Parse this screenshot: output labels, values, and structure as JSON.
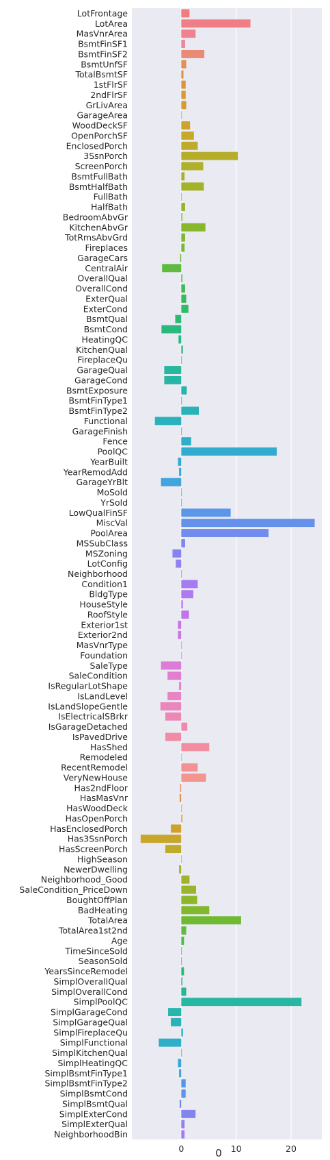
{
  "chart_data": {
    "type": "bar",
    "orientation": "horizontal",
    "title": "",
    "xlabel": "0",
    "ylabel": "",
    "xlim": [
      -9.0,
      25.6
    ],
    "xticks": [
      0,
      10,
      20
    ],
    "grid": true,
    "categories": [
      "LotFrontage",
      "LotArea",
      "MasVnrArea",
      "BsmtFinSF1",
      "BsmtFinSF2",
      "BsmtUnfSF",
      "TotalBsmtSF",
      "1stFlrSF",
      "2ndFlrSF",
      "GrLivArea",
      "GarageArea",
      "WoodDeckSF",
      "OpenPorchSF",
      "EnclosedPorch",
      "3SsnPorch",
      "ScreenPorch",
      "BsmtFullBath",
      "BsmtHalfBath",
      "FullBath",
      "HalfBath",
      "BedroomAbvGr",
      "KitchenAbvGr",
      "TotRmsAbvGrd",
      "Fireplaces",
      "GarageCars",
      "CentralAir",
      "OverallQual",
      "OverallCond",
      "ExterQual",
      "ExterCond",
      "BsmtQual",
      "BsmtCond",
      "HeatingQC",
      "KitchenQual",
      "FireplaceQu",
      "GarageQual",
      "GarageCond",
      "BsmtExposure",
      "BsmtFinType1",
      "BsmtFinType2",
      "Functional",
      "GarageFinish",
      "Fence",
      "PoolQC",
      "YearBuilt",
      "YearRemodAdd",
      "GarageYrBlt",
      "MoSold",
      "YrSold",
      "LowQualFinSF",
      "MiscVal",
      "PoolArea",
      "MSSubClass",
      "MSZoning",
      "LotConfig",
      "Neighborhood",
      "Condition1",
      "BldgType",
      "HouseStyle",
      "RoofStyle",
      "Exterior1st",
      "Exterior2nd",
      "MasVnrType",
      "Foundation",
      "SaleType",
      "SaleCondition",
      "IsRegularLotShape",
      "IsLandLevel",
      "IsLandSlopeGentle",
      "IsElectricalSBrkr",
      "IsGarageDetached",
      "IsPavedDrive",
      "HasShed",
      "Remodeled",
      "RecentRemodel",
      "VeryNewHouse",
      "Has2ndFloor",
      "HasMasVnr",
      "HasWoodDeck",
      "HasOpenPorch",
      "HasEnclosedPorch",
      "Has3SsnPorch",
      "HasScreenPorch",
      "HighSeason",
      "NewerDwelling",
      "Neighborhood_Good",
      "SaleCondition_PriceDown",
      "BoughtOffPlan",
      "BadHeating",
      "TotalArea",
      "TotalArea1st2nd",
      "Age",
      "TimeSinceSold",
      "SeasonSold",
      "YearsSinceRemodel",
      "SimplOverallQual",
      "SimplOverallCond",
      "SimplPoolQC",
      "SimplGarageCond",
      "SimplGarageQual",
      "SimplFireplaceQu",
      "SimplFunctional",
      "SimplKitchenQual",
      "SimplHeatingQC",
      "SimplBsmtFinType1",
      "SimplBsmtFinType2",
      "SimplBsmtCond",
      "SimplBsmtQual",
      "SimplExterCond",
      "SimplExterQual",
      "NeighborhoodBin"
    ],
    "values": [
      1.5,
      12.6,
      2.6,
      0.7,
      4.2,
      0.9,
      0.4,
      0.8,
      0.8,
      0.9,
      0.1,
      1.6,
      2.3,
      3.0,
      10.3,
      4.0,
      0.6,
      4.1,
      0.1,
      0.7,
      0.2,
      4.4,
      0.7,
      0.6,
      -0.2,
      -3.5,
      0.2,
      0.7,
      0.9,
      1.3,
      -1.1,
      -3.6,
      -0.5,
      0.3,
      0.1,
      -3.1,
      -3.1,
      1.0,
      0.1,
      3.2,
      -4.8,
      0.1,
      1.8,
      17.4,
      -0.6,
      -0.4,
      -3.7,
      0.1,
      0.1,
      9.0,
      24.3,
      15.9,
      0.7,
      -1.6,
      -1.0,
      0.1,
      3.0,
      2.2,
      0.3,
      1.4,
      -0.6,
      -0.6,
      0.1,
      0.1,
      -3.7,
      -2.5,
      -0.4,
      -2.5,
      -3.8,
      -2.9,
      1.1,
      -2.9,
      5.1,
      0.1,
      3.0,
      4.5,
      -0.2,
      -0.3,
      0.1,
      0.2,
      -1.9,
      -7.4,
      -2.9,
      0.1,
      -0.4,
      1.5,
      2.7,
      2.9,
      5.1,
      10.9,
      0.9,
      0.5,
      0.1,
      0.1,
      0.5,
      0.2,
      0.9,
      21.9,
      -2.4,
      -1.9,
      0.3,
      -4.1,
      0.1,
      -0.6,
      -0.4,
      0.8,
      0.8,
      -0.3,
      2.6,
      0.6,
      0.6
    ],
    "colors": [
      "#f17c7e",
      "#f07e87",
      "#ee8291",
      "#ec869d",
      "#e78b76",
      "#e48f56",
      "#e19245",
      "#dd953d",
      "#d89a36",
      "#d69c32",
      "#d39f2f",
      "#cca42b",
      "#c6a82b",
      "#bfab2b",
      "#b6ad2b",
      "#b0b02b",
      "#a8b12b",
      "#a2b32b",
      "#9bb42b",
      "#93b52b",
      "#8eb72b",
      "#87b82c",
      "#7fb92d",
      "#77ba30",
      "#6bbb37",
      "#5fbb3f",
      "#52bb48",
      "#44bb52",
      "#39ba5d",
      "#31ba68",
      "#2cba73",
      "#29b97c",
      "#28b985",
      "#27b88d",
      "#27b895",
      "#27b79c",
      "#27b6a3",
      "#27b5aa",
      "#28b4b0",
      "#29b3b6",
      "#2ab2bc",
      "#2cb0c2",
      "#2eaec8",
      "#31acce",
      "#35aad3",
      "#3aa7d8",
      "#41a4dd",
      "#489fe1",
      "#519be5",
      "#5b96e8",
      "#6691eb",
      "#718ced",
      "#7c87ef",
      "#8783f0",
      "#9280f1",
      "#9c7df1",
      "#a67bf0",
      "#af79ef",
      "#b777ed",
      "#bf76ea",
      "#c676e7",
      "#cc77e3",
      "#d278df",
      "#d879db",
      "#dd7bd6",
      "#e17ed0",
      "#e581ca",
      "#e884c4",
      "#eb86bd",
      "#ed88b6",
      "#ef8aaf",
      "#f08ca8",
      "#f18ea1",
      "#f2909a",
      "#f39294",
      "#f3948e",
      "#e88e66",
      "#e0924c",
      "#dc963c",
      "#d69b34",
      "#d0a02f",
      "#c8a62b",
      "#bfab2b",
      "#b6ad2b",
      "#acb02b",
      "#a2b32b",
      "#98b52b",
      "#8db72b",
      "#80b92c",
      "#70ba33",
      "#60bb3e",
      "#4ebb4b",
      "#3bba5b",
      "#30ba6b",
      "#2ab97b",
      "#28b98a",
      "#27b797",
      "#27b6a2",
      "#28b5ad",
      "#29b3b6",
      "#2bb1bf",
      "#2eaec8",
      "#33abd0",
      "#3aa7d8",
      "#44a2df",
      "#519be5",
      "#6093ea",
      "#718ced",
      "#8285f0",
      "#927ff1",
      "#a27bf1",
      "#b277ee",
      "#c076e9"
    ],
    "bar_color_mode": "seaborn-husl"
  }
}
